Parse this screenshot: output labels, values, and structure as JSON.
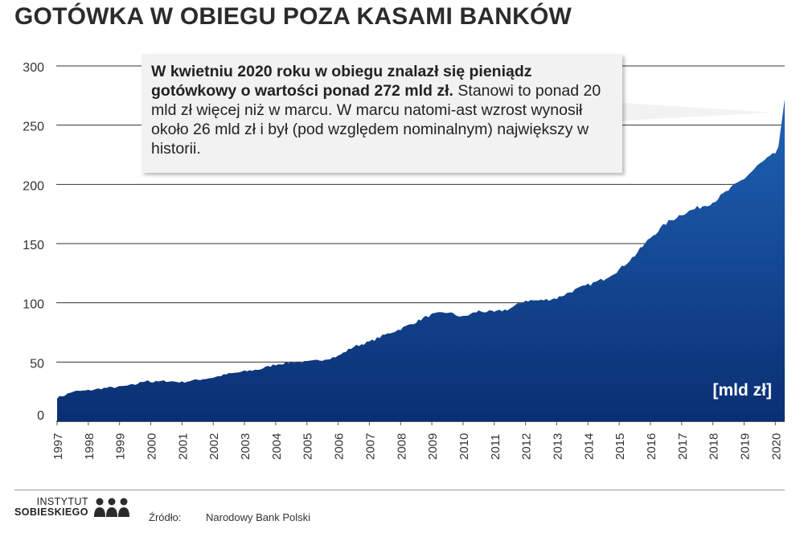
{
  "title": "GOTÓWKA W OBIEGU POZA KASAMI BANKÓW",
  "callout": {
    "bold_text": "W kwietniu 2020 roku w obiegu znalazł się pieniądz gotówkowy o wartości  ponad 272 mld zł.",
    "normal_text": " Stanowi to ponad 20 mld zł więcej niż w marcu. W marcu natomi-ast  wzrost wynosił około 26 mld zł i był (pod względem nominalnym) największy w historii."
  },
  "unit_label": "[mld zł]",
  "source": {
    "label": "Źródło:",
    "value": "Narodowy Bank Polski"
  },
  "logo": {
    "line1": "INSTYTUT",
    "line2": "SOBIESKIEGO"
  },
  "colors": {
    "area_top": "#1f63b5",
    "area_bottom": "#0a2f73",
    "grid": "#333333",
    "callout_bg": "#f2f2f2"
  },
  "chart_data": {
    "type": "area",
    "title": "GOTÓWKA W OBIEGU POZA KASAMI BANKÓW",
    "ylabel": "[mld zł]",
    "xlabel": "",
    "ylim": [
      0,
      300
    ],
    "yticks": [
      0,
      50,
      100,
      150,
      200,
      250,
      300
    ],
    "xticks": [
      "1997",
      "1998",
      "1999",
      "2000",
      "2001",
      "2002",
      "2003",
      "2004",
      "2005",
      "2006",
      "2007",
      "2008",
      "2009",
      "2010",
      "2011",
      "2012",
      "2013",
      "2014",
      "2015",
      "2016",
      "2017",
      "2018",
      "2019",
      "2020"
    ],
    "grid": true,
    "series": [
      {
        "x": [
          1997.0,
          1997.25,
          1997.5,
          1998.0,
          1998.5,
          1999.0,
          1999.5,
          1999.9,
          2000.0,
          2000.5,
          2001.0,
          2001.5,
          2002.0,
          2002.5,
          2003.0,
          2003.5,
          2004.0,
          2004.5,
          2005.0,
          2005.5,
          2006.0,
          2006.5,
          2007.0,
          2007.5,
          2008.0,
          2008.5,
          2008.8,
          2009.0,
          2009.5,
          2010.0,
          2010.5,
          2011.0,
          2011.5,
          2012.0,
          2012.5,
          2013.0,
          2013.5,
          2014.0,
          2014.5,
          2015.0,
          2015.5,
          2016.0,
          2016.5,
          2017.0,
          2017.5,
          2018.0,
          2018.5,
          2019.0,
          2019.5,
          2020.0,
          2020.1,
          2020.2,
          2020.3
        ],
        "y": [
          20,
          22,
          25,
          26,
          28,
          29,
          31,
          35,
          33,
          34,
          33,
          35,
          37,
          40,
          42,
          44,
          48,
          50,
          50,
          52,
          55,
          63,
          67,
          73,
          78,
          84,
          88,
          90,
          92,
          88,
          93,
          92,
          95,
          102,
          102,
          104,
          110,
          115,
          120,
          128,
          140,
          155,
          167,
          175,
          180,
          185,
          195,
          205,
          217,
          226,
          232,
          252,
          272
        ]
      }
    ]
  }
}
